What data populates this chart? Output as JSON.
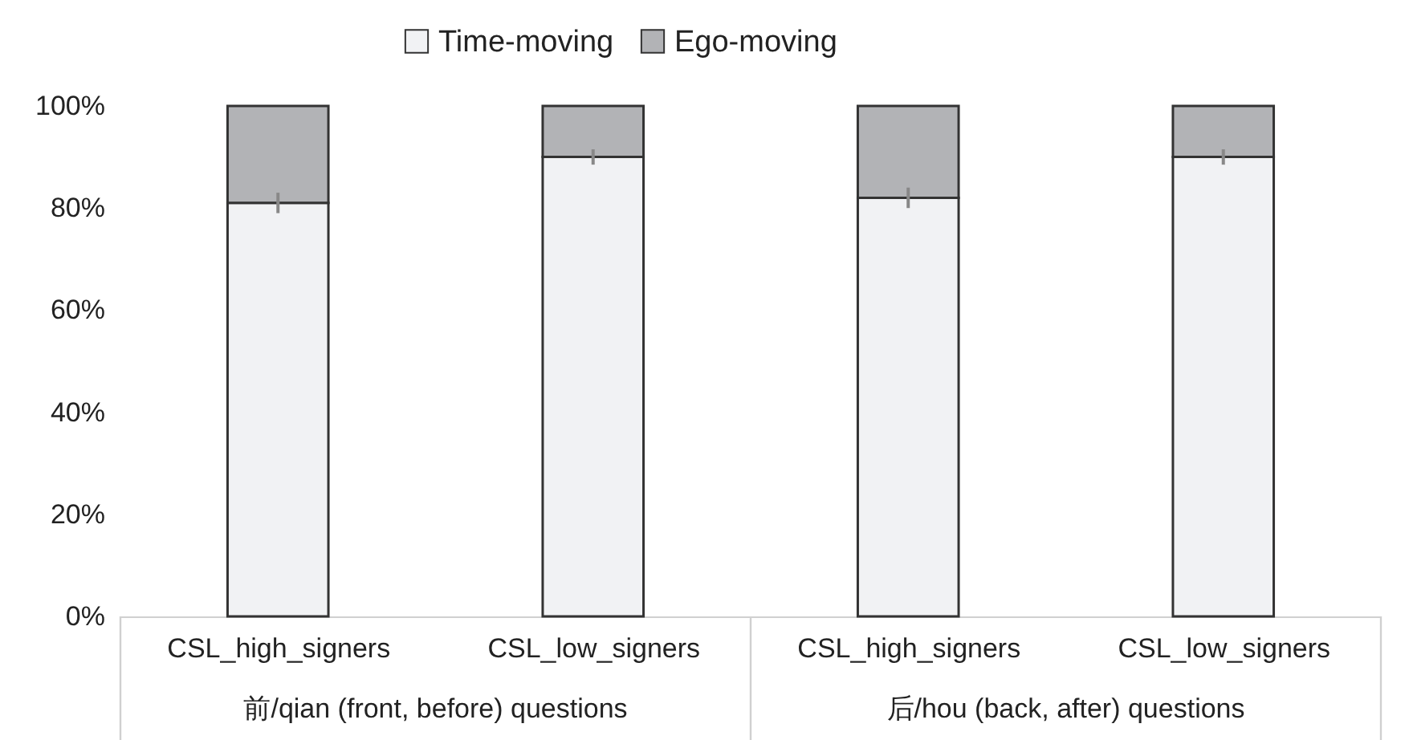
{
  "chart_data": {
    "type": "bar",
    "stacked": true,
    "categories": [
      "CSL_high_signers",
      "CSL_low_signers",
      "CSL_high_signers",
      "CSL_low_signers"
    ],
    "series": [
      {
        "name": "Time-moving",
        "color": "#f1f2f4",
        "values": [
          81,
          90,
          82,
          90
        ],
        "errors": [
          2,
          1.5,
          2,
          1.5
        ]
      },
      {
        "name": "Ego-moving",
        "color": "#b2b3b6",
        "values": [
          19,
          10,
          18,
          10
        ]
      }
    ],
    "ylim": [
      0,
      100
    ],
    "yticks": [
      {
        "value": 0,
        "label": "0%"
      },
      {
        "value": 20,
        "label": "20%"
      },
      {
        "value": 40,
        "label": "40%"
      },
      {
        "value": 60,
        "label": "60%"
      },
      {
        "value": 80,
        "label": "80%"
      },
      {
        "value": 100,
        "label": "100%"
      }
    ],
    "annotations": [
      "前/qian (front, before) questions",
      "后/hou (back, after) questions"
    ],
    "legend": "top",
    "grid": false
  }
}
